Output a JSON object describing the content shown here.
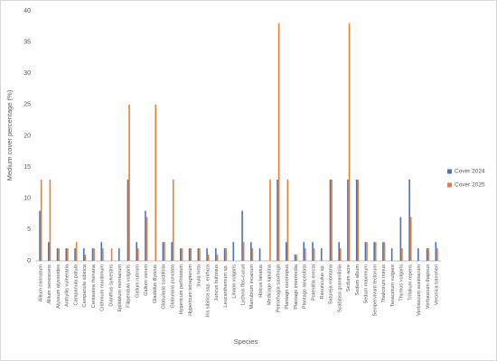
{
  "chart_data": {
    "type": "bar",
    "x_label": "Species",
    "y_label": "Medium cover percentage (%)",
    "categories": [
      "Allium carinatum",
      "Allium senescens",
      "Alyssum alyssoides",
      "Anthyllis vulneraria",
      "Campanula patula",
      "Campanula sibirica",
      "Centaurea rhenana",
      "Crithmum maritimum",
      "Dianthus sylvestris",
      "Epilobium montanum",
      "Filipendula vulgaris",
      "Galium rubrum",
      "Galium verum",
      "Gladiolus illyricus",
      "Globularia cordifolia",
      "Globularia punctata",
      "Hypericum perforatum",
      "Hypericum tetrapterum",
      "Inula hirta",
      "Iris sibirica ssp. erirhiza",
      "Juncus bufonius",
      "Leucanthemum sp.",
      "Linaria vulgaris",
      "Lychnis flos-cuculi",
      "Marrubium incanum",
      "Holcus lanatus",
      "Medicago lupulina",
      "Petrorhagia saxifraga",
      "Plantago coronopus",
      "Plantago intermedia",
      "Plantago lanceolata",
      "Potentilla erecta",
      "Ranunculus sp.",
      "Satureja montana",
      "Scabiosa graminifolia",
      "Sedum acre",
      "Sedum album",
      "Sedum maximum",
      "Sempervivum tectorum",
      "Thalictrum minus",
      "Tanacetum vulgare",
      "Thymus vulgaris",
      "Trifolium repens",
      "Verbascum austriacum",
      "Verbascum thapsus",
      "Veronica barrelieri"
    ],
    "series": [
      {
        "name": "Cover 2024",
        "color": "#4472c4",
        "values": [
          8,
          3,
          2,
          2,
          2,
          2,
          2,
          3,
          0,
          2,
          13,
          3,
          8,
          0,
          3,
          3,
          2,
          2,
          2,
          2,
          2,
          2,
          3,
          8,
          3,
          2,
          0,
          13,
          3,
          1,
          3,
          3,
          2,
          13,
          3,
          13,
          13,
          3,
          3,
          3,
          2,
          7,
          13,
          2,
          2,
          3
        ]
      },
      {
        "name": "Cover 2025",
        "color": "#ed7d31",
        "values": [
          13,
          13,
          2,
          2,
          3,
          1,
          2,
          2,
          2,
          0,
          25,
          2,
          7,
          25,
          3,
          13,
          2,
          2,
          2,
          1,
          1,
          2,
          0,
          3,
          2,
          0,
          13,
          38,
          13,
          1,
          2,
          2,
          0,
          13,
          2,
          38,
          13,
          3,
          3,
          3,
          0,
          2,
          7,
          0,
          2,
          2
        ]
      }
    ],
    "ylim": [
      0,
      40
    ],
    "yticks": [
      0,
      5,
      10,
      15,
      20,
      25,
      30,
      35,
      40
    ],
    "grid": false,
    "legend": "right"
  }
}
